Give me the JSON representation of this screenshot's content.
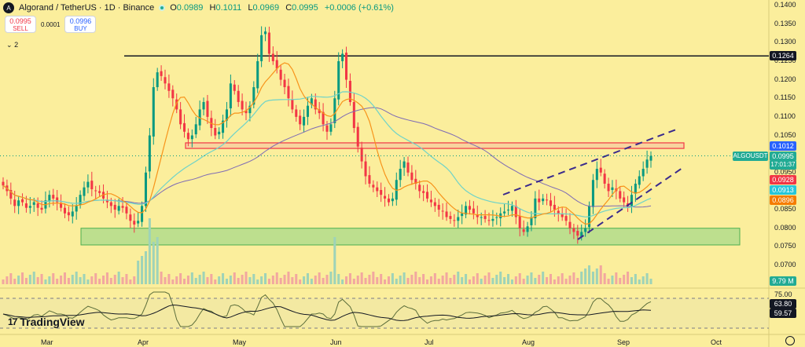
{
  "header": {
    "title": "Algorand / TetherUS · 1D · Binance",
    "logo_letter": "A",
    "o_label": "O",
    "o_value": "0.0989",
    "h_label": "H",
    "h_value": "0.1011",
    "l_label": "L",
    "l_value": "0.0969",
    "c_label": "C",
    "c_value": "0.0995",
    "change": "+0.0006 (+0.61%)"
  },
  "trade": {
    "sell_price": "0.0995",
    "sell_label": "SELL",
    "spread": "0.0001",
    "buy_price": "0.0996",
    "buy_label": "BUY"
  },
  "collapse_label": "2",
  "price_axis": [
    "0.1400",
    "0.1350",
    "0.1300",
    "0.1250",
    "0.1200",
    "0.1150",
    "0.1100",
    "0.1050",
    "0.0950",
    "0.0900",
    "0.0850",
    "0.0800",
    "0.0750",
    "0.0700"
  ],
  "price_tags": {
    "resistance": "0.1264",
    "blue": "0.1012",
    "symbol": "ALGOUSDT",
    "last": "0.0995",
    "countdown": "17:01:37",
    "red": "0.0928",
    "cyan": "0.0913",
    "orange": "0.0896",
    "volume": "9.79 M"
  },
  "rsi_axis": {
    "level": "75.00",
    "rsi": "63.80",
    "ma": "59.57"
  },
  "x_axis": [
    "Mar",
    "Apr",
    "May",
    "Jun",
    "Jul",
    "Aug",
    "Sep",
    "Oct"
  ],
  "brand": "TradingView",
  "colors": {
    "background": "#fbee9c",
    "up": "#089981",
    "down": "#f23645",
    "resistance_line": "#131722",
    "supply_zone": "#f23645",
    "demand_zone": "#4caf50",
    "trend_lines": "#3a2a8c",
    "ma_orange": "#f7931a",
    "ma_cyan": "#6fd3c8",
    "ma_purple": "#7e6bb5"
  },
  "chart_data": {
    "type": "candlestick",
    "symbol": "ALGOUSDT",
    "interval": "1D",
    "ylim": [
      0.068,
      0.142
    ],
    "x": [
      "Mar",
      "Apr",
      "May",
      "Jun",
      "Jul",
      "Aug",
      "Sep",
      "Oct"
    ],
    "close_path": [
      0.0915,
      0.09,
      0.088,
      0.086,
      0.0875,
      0.087,
      0.0855,
      0.086,
      0.087,
      0.0855,
      0.085,
      0.0875,
      0.089,
      0.088,
      0.087,
      0.0855,
      0.084,
      0.0835,
      0.0845,
      0.086,
      0.089,
      0.091,
      0.0925,
      0.0905,
      0.09,
      0.0895,
      0.088,
      0.087,
      0.086,
      0.085,
      0.086,
      0.0855,
      0.084,
      0.082,
      0.081,
      0.082,
      0.086,
      0.095,
      0.105,
      0.118,
      0.122,
      0.121,
      0.119,
      0.117,
      0.115,
      0.112,
      0.108,
      0.106,
      0.104,
      0.105,
      0.108,
      0.112,
      0.114,
      0.11,
      0.107,
      0.105,
      0.106,
      0.109,
      0.112,
      0.119,
      0.117,
      0.114,
      0.112,
      0.111,
      0.113,
      0.118,
      0.125,
      0.132,
      0.133,
      0.127,
      0.125,
      0.123,
      0.12,
      0.118,
      0.115,
      0.112,
      0.11,
      0.108,
      0.11,
      0.113,
      0.115,
      0.112,
      0.111,
      0.108,
      0.106,
      0.108,
      0.115,
      0.125,
      0.127,
      0.12,
      0.114,
      0.107,
      0.102,
      0.098,
      0.094,
      0.092,
      0.091,
      0.09,
      0.089,
      0.088,
      0.087,
      0.088,
      0.093,
      0.096,
      0.098,
      0.095,
      0.093,
      0.092,
      0.09,
      0.0895,
      0.088,
      0.087,
      0.086,
      0.085,
      0.0845,
      0.083,
      0.0825,
      0.082,
      0.083,
      0.084,
      0.086,
      0.085,
      0.084,
      0.083,
      0.083,
      0.0825,
      0.082,
      0.0825,
      0.083,
      0.084,
      0.0845,
      0.085,
      0.086,
      0.083,
      0.08,
      0.079,
      0.0805,
      0.083,
      0.088,
      0.087,
      0.088,
      0.0875,
      0.086,
      0.085,
      0.084,
      0.083,
      0.082,
      0.08,
      0.079,
      0.078,
      0.079,
      0.08,
      0.086,
      0.093,
      0.096,
      0.095,
      0.092,
      0.09,
      0.091,
      0.09,
      0.088,
      0.087,
      0.086,
      0.089,
      0.092,
      0.094,
      0.096,
      0.0985,
      0.0995
    ],
    "overlays": {
      "resistance_line": 0.1264,
      "supply_zone": [
        0.1015,
        0.103
      ],
      "demand_zone": [
        0.0755,
        0.08
      ],
      "rising_channel": true
    },
    "rsi": {
      "value": 63.8,
      "ma": 59.57,
      "upper": 75.0
    }
  }
}
